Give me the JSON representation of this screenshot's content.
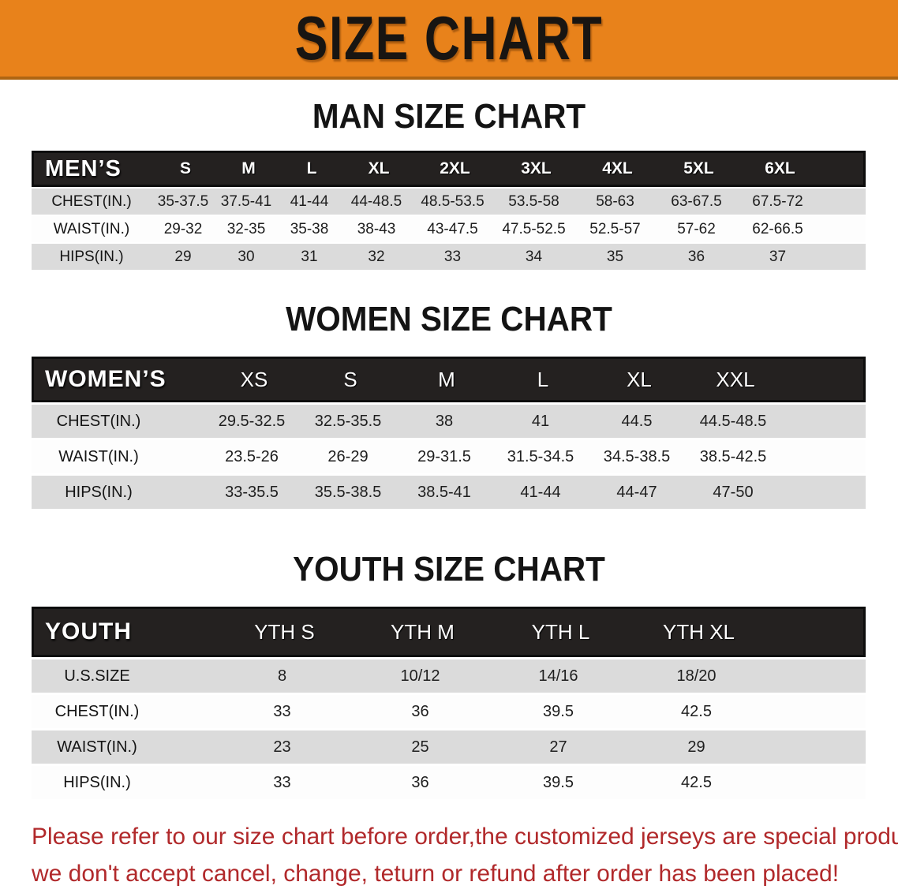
{
  "banner": {
    "title": "SIZE CHART",
    "bg_color": "#E8821B",
    "text_color": "#181512"
  },
  "sections": [
    {
      "heading": "MAN SIZE CHART",
      "table": {
        "header_label": "MEN’S",
        "columns": [
          "S",
          "M",
          "L",
          "XL",
          "2XL",
          "3XL",
          "4XL",
          "5XL",
          "6XL"
        ],
        "rows": [
          {
            "label": "CHEST(IN.)",
            "values": [
              "35-37.5",
              "37.5-41",
              "41-44",
              "44-48.5",
              "48.5-53.5",
              "53.5-58",
              "58-63",
              "63-67.5",
              "67.5-72"
            ]
          },
          {
            "label": "WAIST(IN.)",
            "values": [
              "29-32",
              "32-35",
              "35-38",
              "38-43",
              "43-47.5",
              "47.5-52.5",
              "52.5-57",
              "57-62",
              "62-66.5"
            ]
          },
          {
            "label": "HIPS(IN.)",
            "values": [
              "29",
              "30",
              "31",
              "32",
              "33",
              "34",
              "35",
              "36",
              "37"
            ]
          }
        ]
      }
    },
    {
      "heading": "WOMEN SIZE CHART",
      "table": {
        "header_label": "WOMEN’S",
        "columns": [
          "XS",
          "S",
          "M",
          "L",
          "XL",
          "XXL"
        ],
        "rows": [
          {
            "label": "CHEST(IN.)",
            "values": [
              "29.5-32.5",
              "32.5-35.5",
              "38",
              "41",
              "44.5",
              "44.5-48.5"
            ]
          },
          {
            "label": "WAIST(IN.)",
            "values": [
              "23.5-26",
              "26-29",
              "29-31.5",
              "31.5-34.5",
              "34.5-38.5",
              "38.5-42.5"
            ]
          },
          {
            "label": "HIPS(IN.)",
            "values": [
              "33-35.5",
              "35.5-38.5",
              "38.5-41",
              "41-44",
              "44-47",
              "47-50"
            ]
          }
        ]
      }
    },
    {
      "heading": "YOUTH SIZE CHART",
      "table": {
        "header_label": "YOUTH",
        "columns": [
          "YTH S",
          "YTH M",
          "YTH L",
          "YTH XL"
        ],
        "rows": [
          {
            "label": "U.S.SIZE",
            "values": [
              "8",
              "10/12",
              "14/16",
              "18/20"
            ]
          },
          {
            "label": "CHEST(IN.)",
            "values": [
              "33",
              "36",
              "39.5",
              "42.5"
            ]
          },
          {
            "label": "WAIST(IN.)",
            "values": [
              "23",
              "25",
              "27",
              "29"
            ]
          },
          {
            "label": "HIPS(IN.)",
            "values": [
              "33",
              "36",
              "39.5",
              "42.5"
            ]
          }
        ]
      }
    }
  ],
  "footer": {
    "line1": "Please refer to our size chart before order,the customized jerseys are special products,",
    "line2": "we don't accept cancel, change, teturn or refund after order has been placed!",
    "text_color": "#B1292B"
  },
  "colors": {
    "banner_orange": "#E8821B",
    "banner_edge": "#AE6512",
    "header_bar_black": "#242120",
    "row_shade_gray": "#DBDBDB",
    "row_plain_white": "#FDFDFD",
    "disclaimer_red": "#B1292B"
  }
}
